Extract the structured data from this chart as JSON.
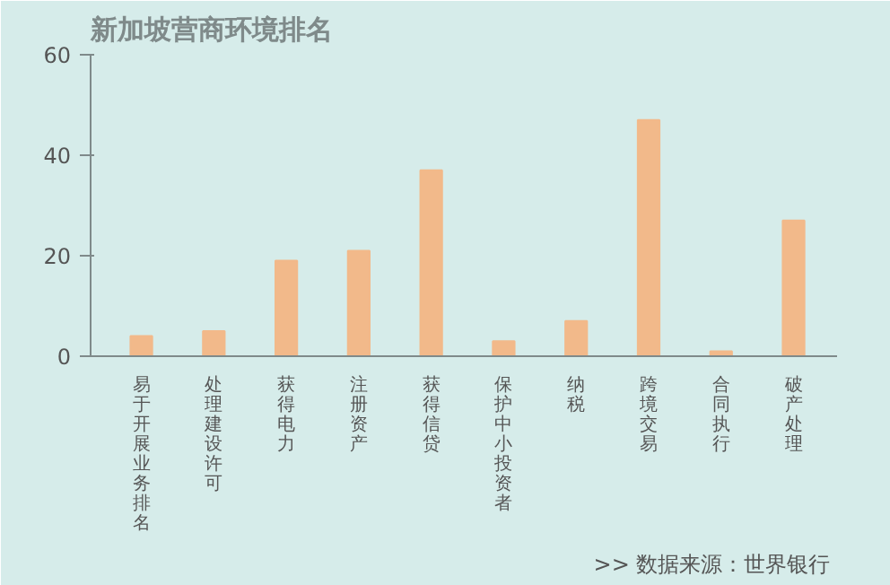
{
  "chart_data": {
    "type": "bar",
    "title": "新加坡营商环境排名",
    "categories": [
      "易于开展业务排名",
      "处理建设许可",
      "获得电力",
      "注册资产",
      "获得信贷",
      "保护中小投资者",
      "纳税",
      "跨境交易",
      "合同执行",
      "破产处理"
    ],
    "values": [
      4,
      5,
      19,
      21,
      37,
      3,
      7,
      47,
      1,
      27
    ],
    "color": "#f2b98a",
    "ylim": [
      0,
      60
    ],
    "yticks": [
      0,
      20,
      40,
      60
    ],
    "grid": false,
    "annotations": [
      ">>  数据来源：世界银行"
    ]
  }
}
